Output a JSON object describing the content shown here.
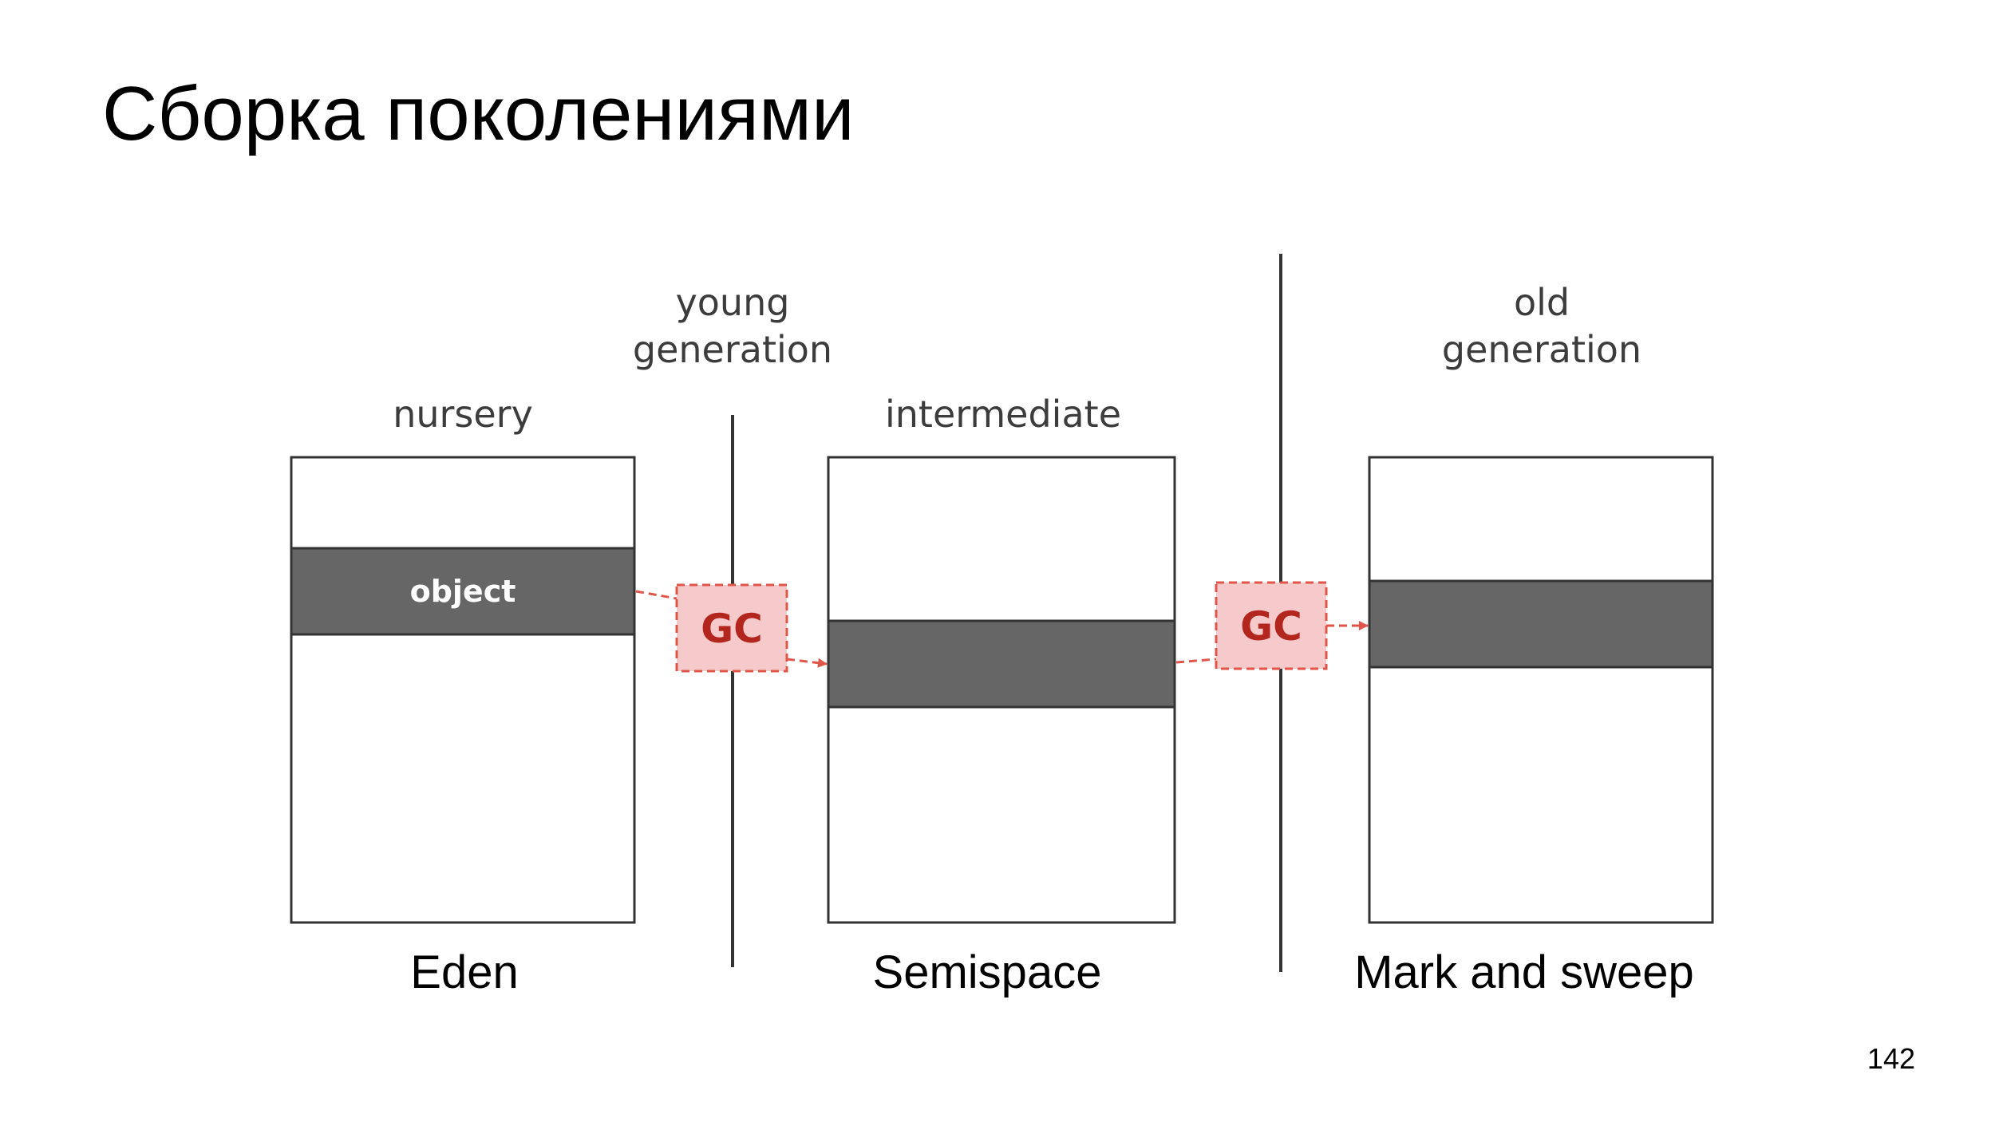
{
  "slide": {
    "title": "Сборка поколениями",
    "page_number": "142"
  },
  "diagram": {
    "generation_labels": {
      "young_line1": "young",
      "young_line2": "generation",
      "old_line1": "old",
      "old_line2": "generation"
    },
    "space_labels": {
      "nursery": "nursery",
      "intermediate": "intermediate"
    },
    "object_label": "object",
    "gc_label": "GC",
    "captions": {
      "eden": "Eden",
      "semispace": "Semispace",
      "mark_and_sweep": "Mark and sweep"
    },
    "colors": {
      "object_fill": "#666666",
      "gc_fill": "#f6caca",
      "gc_border": "#e0554a",
      "gc_text": "#b3261e",
      "arrow": "#e0554a",
      "divider": "#333333"
    }
  }
}
